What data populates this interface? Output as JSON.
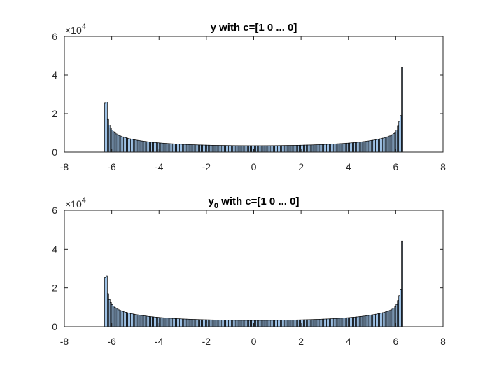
{
  "chart_data": [
    {
      "type": "bar",
      "title": "y with c=[1 0 ... 0]",
      "title_prefix": "y",
      "title_sub": "",
      "title_suffix": " with c=[1 0 ... 0]",
      "xlim": [
        -8,
        8
      ],
      "ylim": [
        0,
        60000
      ],
      "x_ticks": [
        "-8",
        "-6",
        "-4",
        "-2",
        "0",
        "2",
        "4",
        "6",
        "8"
      ],
      "y_ticks": [
        "0",
        "2",
        "4",
        "6"
      ],
      "y_exponent_base": "×10",
      "y_exponent_power": "4",
      "bin_range": [
        -6.3,
        6.3
      ],
      "values": [
        25500,
        26000,
        17000,
        14000,
        12500,
        11400,
        10600,
        10000,
        9500,
        9100,
        8700,
        8400,
        8100,
        7900,
        7650,
        7450,
        7250,
        7050,
        6900,
        6750,
        6600,
        6450,
        6300,
        6200,
        6100,
        5980,
        5870,
        5760,
        5660,
        5560,
        5470,
        5380,
        5300,
        5220,
        5140,
        5070,
        5000,
        4930,
        4870,
        4810,
        4750,
        4690,
        4630,
        4580,
        4530,
        4480,
        4430,
        4390,
        4340,
        4300,
        4260,
        4220,
        4180,
        4140,
        4100,
        4070,
        4030,
        4000,
        3970,
        3940,
        3910,
        3880,
        3850,
        3820,
        3800,
        3770,
        3750,
        3720,
        3700,
        3680,
        3660,
        3640,
        3620,
        3600,
        3580,
        3560,
        3540,
        3530,
        3510,
        3500,
        3480,
        3470,
        3450,
        3440,
        3430,
        3420,
        3410,
        3400,
        3390,
        3380,
        3370,
        3360,
        3350,
        3340,
        3330,
        3320,
        3310,
        3310,
        3300,
        3300,
        3290,
        3290,
        3280,
        3280,
        3280,
        3270,
        3270,
        3270,
        3270,
        3270,
        3270,
        3270,
        3270,
        3270,
        3270,
        3270,
        3280,
        3280,
        3280,
        3290,
        3290,
        3300,
        3300,
        3310,
        3310,
        3320,
        3330,
        3340,
        3350,
        3360,
        3370,
        3380,
        3390,
        3400,
        3410,
        3420,
        3430,
        3440,
        3450,
        3470,
        3480,
        3500,
        3510,
        3530,
        3540,
        3560,
        3580,
        3600,
        3620,
        3640,
        3660,
        3680,
        3700,
        3720,
        3750,
        3770,
        3800,
        3820,
        3850,
        3880,
        3910,
        3940,
        3970,
        4000,
        4030,
        4070,
        4100,
        4140,
        4180,
        4220,
        4260,
        4300,
        4340,
        4390,
        4430,
        4480,
        4530,
        4580,
        4630,
        4690,
        4750,
        4810,
        4870,
        4930,
        5000,
        5070,
        5140,
        5220,
        5300,
        5380,
        5470,
        5560,
        5660,
        5760,
        5870,
        5980,
        6100,
        6200,
        6300,
        6450,
        6600,
        6750,
        6900,
        7050,
        7250,
        7450,
        7650,
        7900,
        8100,
        8400,
        8700,
        9100,
        9600,
        10300,
        11500,
        13500,
        16000,
        19000,
        44000
      ]
    },
    {
      "type": "bar",
      "title": "y0 with c=[1 0 ... 0]",
      "title_prefix": "y",
      "title_sub": "0",
      "title_suffix": " with c=[1 0 ... 0]",
      "xlim": [
        -8,
        8
      ],
      "ylim": [
        0,
        60000
      ],
      "x_ticks": [
        "-8",
        "-6",
        "-4",
        "-2",
        "0",
        "2",
        "4",
        "6",
        "8"
      ],
      "y_ticks": [
        "0",
        "2",
        "4",
        "6"
      ],
      "y_exponent_base": "×10",
      "y_exponent_power": "4",
      "bin_range": [
        -6.3,
        6.3
      ],
      "values": [
        25500,
        26000,
        17000,
        14000,
        12500,
        11400,
        10600,
        10000,
        9500,
        9100,
        8700,
        8400,
        8100,
        7900,
        7650,
        7450,
        7250,
        7050,
        6900,
        6750,
        6600,
        6450,
        6300,
        6200,
        6100,
        5980,
        5870,
        5760,
        5660,
        5560,
        5470,
        5380,
        5300,
        5220,
        5140,
        5070,
        5000,
        4930,
        4870,
        4810,
        4750,
        4690,
        4630,
        4580,
        4530,
        4480,
        4430,
        4390,
        4340,
        4300,
        4260,
        4220,
        4180,
        4140,
        4100,
        4070,
        4030,
        4000,
        3970,
        3940,
        3910,
        3880,
        3850,
        3820,
        3800,
        3770,
        3750,
        3720,
        3700,
        3680,
        3660,
        3640,
        3620,
        3600,
        3580,
        3560,
        3540,
        3530,
        3510,
        3500,
        3480,
        3470,
        3450,
        3440,
        3430,
        3420,
        3410,
        3400,
        3390,
        3380,
        3370,
        3360,
        3350,
        3340,
        3330,
        3320,
        3310,
        3310,
        3300,
        3300,
        3290,
        3290,
        3280,
        3280,
        3280,
        3270,
        3270,
        3270,
        3270,
        3270,
        3270,
        3270,
        3270,
        3270,
        3270,
        3270,
        3280,
        3280,
        3280,
        3290,
        3290,
        3300,
        3300,
        3310,
        3310,
        3320,
        3330,
        3340,
        3350,
        3360,
        3370,
        3380,
        3390,
        3400,
        3410,
        3420,
        3430,
        3440,
        3450,
        3470,
        3480,
        3500,
        3510,
        3530,
        3540,
        3560,
        3580,
        3600,
        3620,
        3640,
        3660,
        3680,
        3700,
        3720,
        3750,
        3770,
        3800,
        3820,
        3850,
        3880,
        3910,
        3940,
        3970,
        4000,
        4030,
        4070,
        4100,
        4140,
        4180,
        4220,
        4260,
        4300,
        4340,
        4390,
        4430,
        4480,
        4530,
        4580,
        4630,
        4690,
        4750,
        4810,
        4870,
        4930,
        5000,
        5070,
        5140,
        5220,
        5300,
        5380,
        5470,
        5560,
        5660,
        5760,
        5870,
        5980,
        6100,
        6200,
        6300,
        6450,
        6600,
        6750,
        6900,
        7050,
        7250,
        7450,
        7650,
        7900,
        8100,
        8400,
        8700,
        9100,
        9600,
        10300,
        11500,
        13500,
        16000,
        19000,
        44000
      ]
    }
  ]
}
